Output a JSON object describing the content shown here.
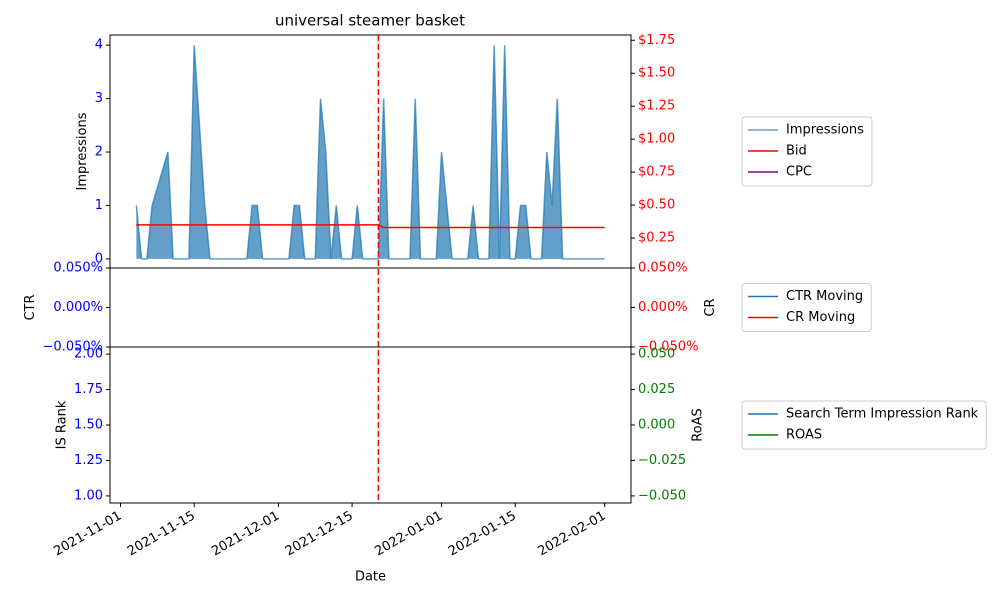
{
  "title": "universal steamer basket",
  "chart_data": [
    {
      "type": "area",
      "ylabel": "Impressions",
      "x": [
        "2021-11-04",
        "2021-11-05",
        "2021-11-06",
        "2021-11-07",
        "2021-11-10",
        "2021-11-11",
        "2021-11-14",
        "2021-11-15",
        "2021-11-17",
        "2021-11-18",
        "2021-11-25",
        "2021-11-26",
        "2021-11-27",
        "2021-11-28",
        "2021-12-03",
        "2021-12-04",
        "2021-12-05",
        "2021-12-06",
        "2021-12-08",
        "2021-12-09",
        "2021-12-10",
        "2021-12-11",
        "2021-12-12",
        "2021-12-13",
        "2021-12-15",
        "2021-12-16",
        "2021-12-17",
        "2021-12-20",
        "2021-12-21",
        "2021-12-22",
        "2021-12-26",
        "2021-12-27",
        "2021-12-28",
        "2021-12-31",
        "2022-01-01",
        "2022-01-03",
        "2022-01-06",
        "2022-01-07",
        "2022-01-08",
        "2022-01-10",
        "2022-01-11",
        "2022-01-12",
        "2022-01-13",
        "2022-01-14",
        "2022-01-15",
        "2022-01-16",
        "2022-01-17",
        "2022-01-18",
        "2022-01-20",
        "2022-01-21",
        "2022-01-22",
        "2022-01-23",
        "2022-01-24",
        "2022-02-01"
      ],
      "series": [
        {
          "name": "Impressions",
          "color": "#1f77b4",
          "alpha": 0.7,
          "values": [
            1,
            0,
            0,
            1,
            2,
            0,
            0,
            4,
            1,
            0,
            0,
            1,
            1,
            0,
            0,
            1,
            1,
            0,
            0,
            3,
            2,
            0,
            1,
            0,
            0,
            1,
            0,
            0,
            3,
            0,
            0,
            3,
            0,
            0,
            2,
            0,
            0,
            1,
            0,
            0,
            4,
            0,
            4,
            0,
            0,
            1,
            1,
            0,
            0,
            2,
            1,
            3,
            0,
            0
          ]
        },
        {
          "name": "Bid",
          "color": "#ff0000",
          "axis": "y2",
          "values": [
            0.35,
            0.35,
            0.35,
            0.35,
            0.35,
            0.35,
            0.35,
            0.35,
            0.35,
            0.35,
            0.35,
            0.35,
            0.35,
            0.35,
            0.35,
            0.35,
            0.35,
            0.35,
            0.35,
            0.35,
            0.35,
            0.35,
            0.35,
            0.35,
            0.35,
            0.35,
            0.35,
            0.35,
            0.33,
            0.33,
            0.33,
            0.33,
            0.33,
            0.33,
            0.33,
            0.33,
            0.33,
            0.33,
            0.33,
            0.33,
            0.33,
            0.33,
            0.33,
            0.33,
            0.33,
            0.33,
            0.33,
            0.33,
            0.33,
            0.33,
            0.33,
            0.33,
            0.33,
            0.33
          ]
        },
        {
          "name": "CPC",
          "color": "#800080",
          "axis": "y2",
          "values": [
            null,
            null,
            null,
            null,
            null,
            null,
            null,
            null,
            null,
            null,
            null,
            null,
            null,
            null,
            null,
            null,
            null,
            null,
            null,
            null,
            null,
            null,
            null,
            null,
            null,
            null,
            null,
            null,
            null,
            null,
            null,
            null,
            null,
            null,
            null,
            null,
            null,
            null,
            null,
            null,
            null,
            null,
            null,
            null,
            null,
            null,
            null,
            null,
            null,
            null,
            null,
            null,
            null,
            null
          ]
        }
      ],
      "ylim": [
        -0.17,
        4.19
      ],
      "yticks": [
        0,
        1,
        2,
        3,
        4
      ],
      "ytick_color": "#0000ff",
      "y2lim": [
        0.023,
        1.79
      ],
      "y2ticks": [
        {
          "value": 0.25,
          "label": "$0.25"
        },
        {
          "value": 0.5,
          "label": "$0.50"
        },
        {
          "value": 0.75,
          "label": "$0.75"
        },
        {
          "value": 1.0,
          "label": "$1.00"
        },
        {
          "value": 1.25,
          "label": "$1.25"
        },
        {
          "value": 1.5,
          "label": "$1.50"
        },
        {
          "value": 1.75,
          "label": "$1.75"
        }
      ],
      "y2tick_color": "#ff0000",
      "vline": "2021-12-20",
      "vline_color": "#ff0000",
      "legend": "outside right"
    },
    {
      "type": "line",
      "ylabel": "CTR",
      "y2label": "CR",
      "series": [
        {
          "name": "CTR Moving",
          "color": "#1f77b4",
          "values": []
        },
        {
          "name": "CR Moving",
          "color": "#ff0000",
          "axis": "y2",
          "values": []
        }
      ],
      "ylim": [
        -0.05,
        0.05
      ],
      "yticks": [
        {
          "value": -0.05,
          "label": "−0.050%"
        },
        {
          "value": 0.0,
          "label": "0.000%"
        },
        {
          "value": 0.05,
          "label": "0.050%"
        }
      ],
      "ytick_color": "#0000ff",
      "y2lim": [
        -0.05,
        0.05
      ],
      "y2ticks": [
        {
          "value": -0.05,
          "label": "−0.050%"
        },
        {
          "value": 0.0,
          "label": "0.000%"
        },
        {
          "value": 0.05,
          "label": "0.050%"
        }
      ],
      "y2tick_color": "#ff0000",
      "legend": "outside right"
    },
    {
      "type": "line",
      "ylabel": "IS Rank",
      "y2label": "RoAS",
      "xlabel": "Date",
      "series": [
        {
          "name": "Search Term Impression Rank",
          "color": "#1f77b4",
          "values": []
        },
        {
          "name": "ROAS",
          "color": "#008000",
          "axis": "y2",
          "values": []
        }
      ],
      "ylim": [
        0.95,
        2.05
      ],
      "yticks": [
        {
          "value": 1.0,
          "label": "1.00"
        },
        {
          "value": 1.25,
          "label": "1.25"
        },
        {
          "value": 1.5,
          "label": "1.50"
        },
        {
          "value": 1.75,
          "label": "1.75"
        },
        {
          "value": 2.0,
          "label": "2.00"
        }
      ],
      "ytick_color": "#0000ff",
      "y2lim": [
        -0.055,
        0.055
      ],
      "y2ticks": [
        {
          "value": -0.05,
          "label": "−0.050"
        },
        {
          "value": -0.025,
          "label": "−0.025"
        },
        {
          "value": 0.0,
          "label": "0.000"
        },
        {
          "value": 0.025,
          "label": "0.025"
        },
        {
          "value": 0.05,
          "label": "0.050"
        }
      ],
      "y2tick_color": "#008000",
      "xlim": [
        "2021-10-30",
        "2022-02-06"
      ],
      "xticks": [
        "2021-11-01",
        "2021-11-15",
        "2021-12-01",
        "2021-12-15",
        "2022-01-01",
        "2022-01-15",
        "2022-02-01"
      ],
      "legend": "outside right"
    }
  ]
}
